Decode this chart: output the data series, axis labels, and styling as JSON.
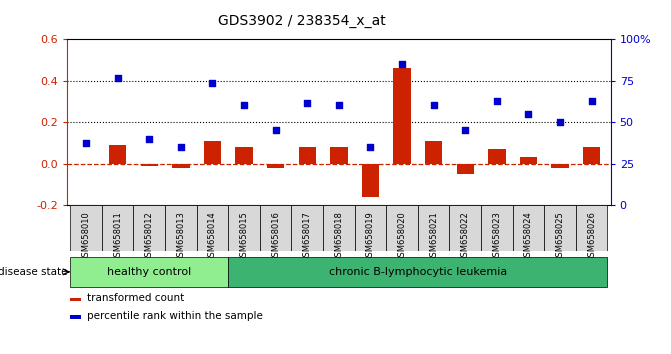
{
  "title": "GDS3902 / 238354_x_at",
  "samples": [
    "GSM658010",
    "GSM658011",
    "GSM658012",
    "GSM658013",
    "GSM658014",
    "GSM658015",
    "GSM658016",
    "GSM658017",
    "GSM658018",
    "GSM658019",
    "GSM658020",
    "GSM658021",
    "GSM658022",
    "GSM658023",
    "GSM658024",
    "GSM658025",
    "GSM658026"
  ],
  "red_bars": [
    0.0,
    0.09,
    -0.01,
    -0.02,
    0.11,
    0.08,
    -0.02,
    0.08,
    0.08,
    -0.16,
    0.46,
    0.11,
    -0.05,
    0.07,
    0.03,
    -0.02,
    0.08
  ],
  "blue_squares": [
    0.1,
    0.41,
    0.12,
    0.08,
    0.39,
    0.28,
    0.16,
    0.29,
    0.28,
    0.08,
    0.48,
    0.28,
    0.16,
    0.3,
    0.24,
    0.2,
    0.3
  ],
  "ylim_left": [
    -0.2,
    0.6
  ],
  "ylim_right": [
    0,
    100
  ],
  "yticks_left": [
    -0.2,
    0.0,
    0.2,
    0.4,
    0.6
  ],
  "yticks_right": [
    0,
    25,
    50,
    75,
    100
  ],
  "ytick_labels_right": [
    "0",
    "25",
    "50",
    "75",
    "100%"
  ],
  "hlines": [
    0.2,
    0.4
  ],
  "healthy_count": 5,
  "group_labels": [
    "healthy control",
    "chronic B-lymphocytic leukemia"
  ],
  "disease_label": "disease state",
  "legend_red": "transformed count",
  "legend_blue": "percentile rank within the sample",
  "bar_color": "#cc2200",
  "square_color": "#0000cc",
  "dashed_line_color": "#cc2200",
  "healthy_bg": "#90EE90",
  "leukemia_bg": "#3CB371",
  "sample_box_bg": "#d8d8d8",
  "axis_bg": "#ffffff"
}
